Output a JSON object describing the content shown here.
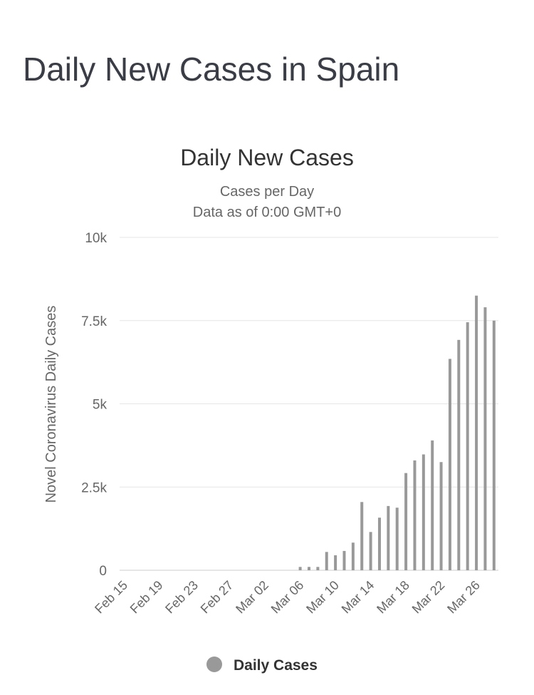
{
  "page": {
    "title": "Daily New Cases in Spain"
  },
  "chart_data": {
    "type": "bar",
    "title": "Daily New Cases",
    "subtitle_line1": "Cases per Day",
    "subtitle_line2": "Data as of 0:00 GMT+0",
    "ylabel": "Novel Coronavirus Daily Cases",
    "ylim": [
      0,
      10000
    ],
    "yticks": [
      {
        "value": 0,
        "label": "0"
      },
      {
        "value": 2500,
        "label": "2.5k"
      },
      {
        "value": 5000,
        "label": "5k"
      },
      {
        "value": 7500,
        "label": "7.5k"
      },
      {
        "value": 10000,
        "label": "10k"
      }
    ],
    "grid": true,
    "legend_position": "bottom-center",
    "x_tick_labels": [
      "Feb 15",
      "Feb 19",
      "Feb 23",
      "Feb 27",
      "Mar 02",
      "Mar 06",
      "Mar 10",
      "Mar 14",
      "Mar 18",
      "Mar 22",
      "Mar 26"
    ],
    "categories": [
      "Feb 15",
      "Feb 16",
      "Feb 17",
      "Feb 18",
      "Feb 19",
      "Feb 20",
      "Feb 21",
      "Feb 22",
      "Feb 23",
      "Feb 24",
      "Feb 25",
      "Feb 26",
      "Feb 27",
      "Feb 28",
      "Feb 29",
      "Mar 01",
      "Mar 02",
      "Mar 03",
      "Mar 04",
      "Mar 05",
      "Mar 06",
      "Mar 07",
      "Mar 08",
      "Mar 09",
      "Mar 10",
      "Mar 11",
      "Mar 12",
      "Mar 13",
      "Mar 14",
      "Mar 15",
      "Mar 16",
      "Mar 17",
      "Mar 18",
      "Mar 19",
      "Mar 20",
      "Mar 21",
      "Mar 22",
      "Mar 23",
      "Mar 24",
      "Mar 25",
      "Mar 26",
      "Mar 27",
      "Mar 28"
    ],
    "series": [
      {
        "name": "Daily Cases",
        "color": "#999999",
        "values": [
          0,
          0,
          0,
          0,
          0,
          0,
          0,
          0,
          0,
          0,
          0,
          0,
          0,
          0,
          0,
          0,
          0,
          0,
          0,
          0,
          100,
          100,
          100,
          550,
          450,
          580,
          830,
          2050,
          1150,
          1580,
          1930,
          1880,
          2920,
          3300,
          3480,
          3900,
          3250,
          6350,
          6920,
          7450,
          8250,
          7900,
          7500
        ]
      }
    ]
  }
}
